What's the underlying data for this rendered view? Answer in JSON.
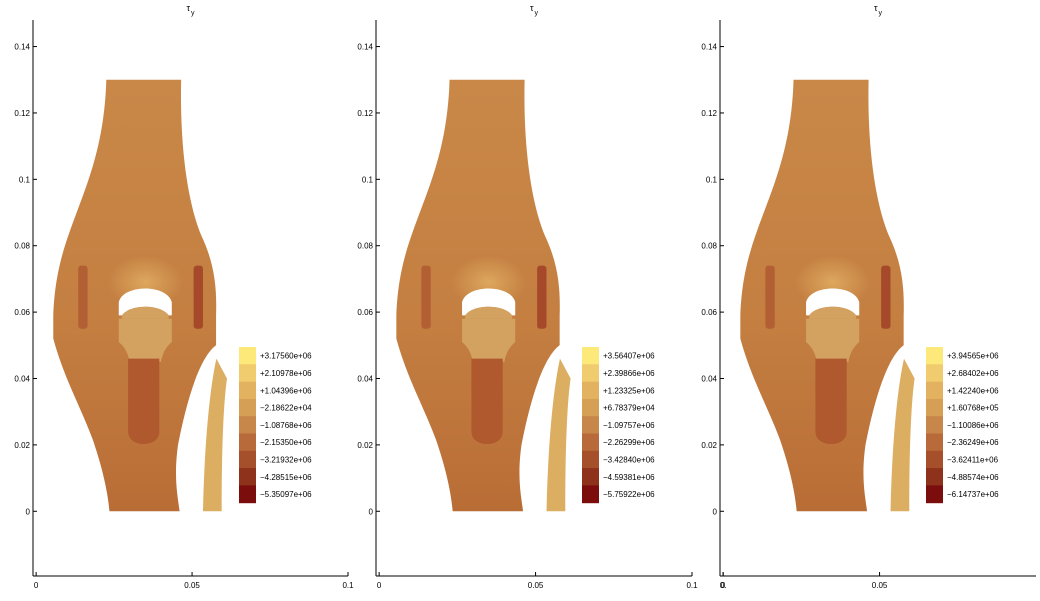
{
  "chart_data": [
    {
      "type": "heatmap",
      "title_symbol": "τ",
      "title_subscript": "y",
      "xlim": [
        -0.001,
        0.1
      ],
      "ylim": [
        -0.0195,
        0.148
      ],
      "xticks": [
        "0",
        "0.05",
        "0.1"
      ],
      "yticks": [
        "0",
        "0.02",
        "0.04",
        "0.06",
        "0.08",
        "0.1",
        "0.12",
        "0.14"
      ],
      "colorbar_labels": [
        "+3.17560e+06",
        "+2.10978e+06",
        "+1.04396e+06",
        "−2.18622e+04",
        "−1.08768e+06",
        "−2.15350e+06",
        "−3.21932e+06",
        "−4.28515e+06",
        "−5.35097e+06"
      ]
    },
    {
      "type": "heatmap",
      "title_symbol": "τ",
      "title_subscript": "y",
      "xlim": [
        -0.001,
        0.1
      ],
      "ylim": [
        -0.0195,
        0.148
      ],
      "xticks": [
        "0",
        "0.05",
        "0.1"
      ],
      "yticks": [
        "0",
        "0.02",
        "0.04",
        "0.06",
        "0.08",
        "0.1",
        "0.12",
        "0.14"
      ],
      "colorbar_labels": [
        "+3.56407e+06",
        "+2.39866e+06",
        "+1.23325e+06",
        "+6.78379e+04",
        "−1.09757e+06",
        "−2.26299e+06",
        "−3.42840e+06",
        "−4.59381e+06",
        "−5.75922e+06"
      ]
    },
    {
      "type": "heatmap",
      "title_symbol": "τ",
      "title_subscript": "y",
      "xlim": [
        -0.001,
        0.1
      ],
      "ylim": [
        -0.0195,
        0.148
      ],
      "xticks": [
        "0",
        "0.05",
        "0."
      ],
      "yticks": [
        "0",
        "0.02",
        "0.04",
        "0.06",
        "0.08",
        "0.1",
        "0.12",
        "0.14"
      ],
      "colorbar_labels": [
        "+3.94565e+06",
        "+2.68402e+06",
        "+1.42240e+06",
        "+1.60768e+05",
        "−1.10086e+06",
        "−2.36249e+06",
        "−3.62411e+06",
        "−4.88574e+06",
        "−6.14737e+06"
      ]
    }
  ],
  "colors": {
    "colorbar": [
      "#fde87a",
      "#f1cc6f",
      "#e3b261",
      "#d69f56",
      "#c7864a",
      "#b96a3a",
      "#a5502a",
      "#8f321b",
      "#7b0d0d"
    ],
    "body": "#c47f41",
    "body_upper": "#c98848",
    "body_lower": "#b96d36",
    "light_region": "#e1ae63",
    "dark_slot": "#a5492a",
    "mid_slot": "#b35f34",
    "insert": "#d3a260",
    "stem": "#b0592f",
    "strip": "#dcae62",
    "axis": "#000000"
  }
}
